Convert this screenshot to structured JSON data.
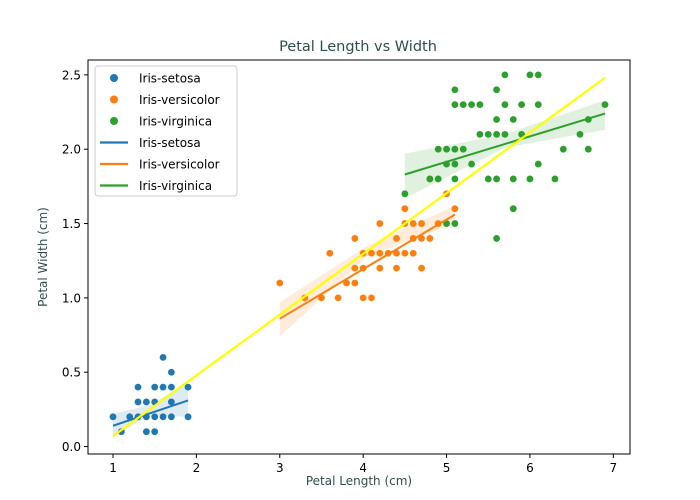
{
  "chart_data": {
    "type": "scatter",
    "title": "Petal Length vs Width",
    "xlabel": "Petal Length (cm)",
    "ylabel": "Petal Width (cm)",
    "xlim": [
      0.7,
      7.2
    ],
    "ylim": [
      -0.05,
      2.6
    ],
    "xticks": [
      1,
      2,
      3,
      4,
      5,
      6,
      7
    ],
    "xtick_labels": [
      "1",
      "2",
      "3",
      "4",
      "5",
      "6",
      "7"
    ],
    "yticks": [
      0.0,
      0.5,
      1.0,
      1.5,
      2.0,
      2.5
    ],
    "ytick_labels": [
      "0.0",
      "0.5",
      "1.0",
      "1.5",
      "2.0",
      "2.5"
    ],
    "grid": false,
    "legend_position": "top-left",
    "colors": {
      "setosa": "#1f77b4",
      "versicolor": "#ff7f0e",
      "virginica": "#2ca02c",
      "overall_fit": "#ffff00",
      "title_text": "#2f4f4f"
    },
    "series": [
      {
        "name": "Iris-setosa",
        "color": "#1f77b4",
        "points": [
          [
            1.0,
            0.2
          ],
          [
            1.1,
            0.1
          ],
          [
            1.2,
            0.2
          ],
          [
            1.3,
            0.2
          ],
          [
            1.3,
            0.3
          ],
          [
            1.3,
            0.4
          ],
          [
            1.4,
            0.1
          ],
          [
            1.4,
            0.2
          ],
          [
            1.4,
            0.3
          ],
          [
            1.5,
            0.1
          ],
          [
            1.5,
            0.2
          ],
          [
            1.5,
            0.3
          ],
          [
            1.5,
            0.4
          ],
          [
            1.6,
            0.2
          ],
          [
            1.6,
            0.4
          ],
          [
            1.6,
            0.6
          ],
          [
            1.7,
            0.2
          ],
          [
            1.7,
            0.3
          ],
          [
            1.7,
            0.4
          ],
          [
            1.7,
            0.5
          ],
          [
            1.9,
            0.2
          ],
          [
            1.9,
            0.4
          ]
        ],
        "fit": {
          "x": [
            1.0,
            1.9
          ],
          "y": [
            0.14,
            0.31
          ]
        },
        "ci": {
          "x": [
            1.0,
            1.45,
            1.9
          ],
          "upper": [
            0.22,
            0.28,
            0.43
          ],
          "lower": [
            0.07,
            0.21,
            0.2
          ]
        }
      },
      {
        "name": "Iris-versicolor",
        "color": "#ff7f0e",
        "points": [
          [
            3.0,
            1.1
          ],
          [
            3.3,
            1.0
          ],
          [
            3.5,
            1.0
          ],
          [
            3.6,
            1.3
          ],
          [
            3.7,
            1.0
          ],
          [
            3.8,
            1.1
          ],
          [
            3.9,
            1.1
          ],
          [
            3.9,
            1.2
          ],
          [
            3.9,
            1.4
          ],
          [
            4.0,
            1.0
          ],
          [
            4.0,
            1.2
          ],
          [
            4.0,
            1.3
          ],
          [
            4.1,
            1.0
          ],
          [
            4.1,
            1.3
          ],
          [
            4.2,
            1.2
          ],
          [
            4.2,
            1.3
          ],
          [
            4.2,
            1.5
          ],
          [
            4.3,
            1.3
          ],
          [
            4.4,
            1.2
          ],
          [
            4.4,
            1.3
          ],
          [
            4.4,
            1.4
          ],
          [
            4.5,
            1.3
          ],
          [
            4.5,
            1.5
          ],
          [
            4.5,
            1.6
          ],
          [
            4.6,
            1.3
          ],
          [
            4.6,
            1.4
          ],
          [
            4.6,
            1.5
          ],
          [
            4.7,
            1.2
          ],
          [
            4.7,
            1.4
          ],
          [
            4.7,
            1.5
          ],
          [
            4.8,
            1.4
          ],
          [
            4.8,
            1.8
          ],
          [
            4.9,
            1.5
          ],
          [
            5.0,
            1.7
          ],
          [
            5.1,
            1.6
          ]
        ],
        "fit": {
          "x": [
            3.0,
            5.1
          ],
          "y": [
            0.86,
            1.56
          ]
        },
        "ci": {
          "x": [
            3.0,
            4.05,
            5.1
          ],
          "upper": [
            0.97,
            1.35,
            1.62
          ],
          "lower": [
            0.74,
            1.28,
            1.5
          ]
        }
      },
      {
        "name": "Iris-virginica",
        "color": "#2ca02c",
        "points": [
          [
            4.5,
            1.7
          ],
          [
            4.8,
            1.8
          ],
          [
            4.9,
            1.8
          ],
          [
            4.9,
            2.0
          ],
          [
            5.0,
            1.5
          ],
          [
            5.0,
            1.9
          ],
          [
            5.0,
            2.0
          ],
          [
            5.1,
            1.5
          ],
          [
            5.1,
            1.8
          ],
          [
            5.1,
            1.9
          ],
          [
            5.1,
            2.0
          ],
          [
            5.1,
            2.3
          ],
          [
            5.1,
            2.4
          ],
          [
            5.2,
            2.0
          ],
          [
            5.2,
            2.3
          ],
          [
            5.3,
            1.9
          ],
          [
            5.3,
            2.3
          ],
          [
            5.4,
            2.1
          ],
          [
            5.4,
            2.3
          ],
          [
            5.5,
            1.8
          ],
          [
            5.5,
            2.1
          ],
          [
            5.6,
            1.4
          ],
          [
            5.6,
            1.8
          ],
          [
            5.6,
            2.1
          ],
          [
            5.6,
            2.2
          ],
          [
            5.6,
            2.4
          ],
          [
            5.7,
            2.1
          ],
          [
            5.7,
            2.3
          ],
          [
            5.7,
            2.5
          ],
          [
            5.8,
            1.6
          ],
          [
            5.8,
            1.8
          ],
          [
            5.8,
            2.2
          ],
          [
            5.9,
            2.1
          ],
          [
            5.9,
            2.3
          ],
          [
            6.0,
            1.8
          ],
          [
            6.0,
            2.5
          ],
          [
            6.1,
            1.9
          ],
          [
            6.1,
            2.3
          ],
          [
            6.1,
            2.5
          ],
          [
            6.3,
            1.8
          ],
          [
            6.4,
            2.0
          ],
          [
            6.6,
            2.1
          ],
          [
            6.7,
            2.0
          ],
          [
            6.7,
            2.2
          ],
          [
            6.9,
            2.3
          ]
        ],
        "fit": {
          "x": [
            4.5,
            6.9
          ],
          "y": [
            1.83,
            2.24
          ]
        },
        "ci": {
          "x": [
            4.5,
            5.7,
            6.9
          ],
          "upper": [
            1.97,
            2.1,
            2.33
          ],
          "lower": [
            1.67,
            2.01,
            2.13
          ]
        }
      }
    ],
    "overall_fit": {
      "color": "#ffff00",
      "x": [
        1.0,
        6.9
      ],
      "y": [
        0.07,
        2.48
      ]
    },
    "legend": [
      {
        "label": "Iris-setosa",
        "kind": "marker",
        "color": "#1f77b4"
      },
      {
        "label": "Iris-versicolor",
        "kind": "marker",
        "color": "#ff7f0e"
      },
      {
        "label": "Iris-virginica",
        "kind": "marker",
        "color": "#2ca02c"
      },
      {
        "label": "Iris-setosa",
        "kind": "line",
        "color": "#1f77b4"
      },
      {
        "label": "Iris-versicolor",
        "kind": "line",
        "color": "#ff7f0e"
      },
      {
        "label": "Iris-virginica",
        "kind": "line",
        "color": "#2ca02c"
      }
    ]
  }
}
